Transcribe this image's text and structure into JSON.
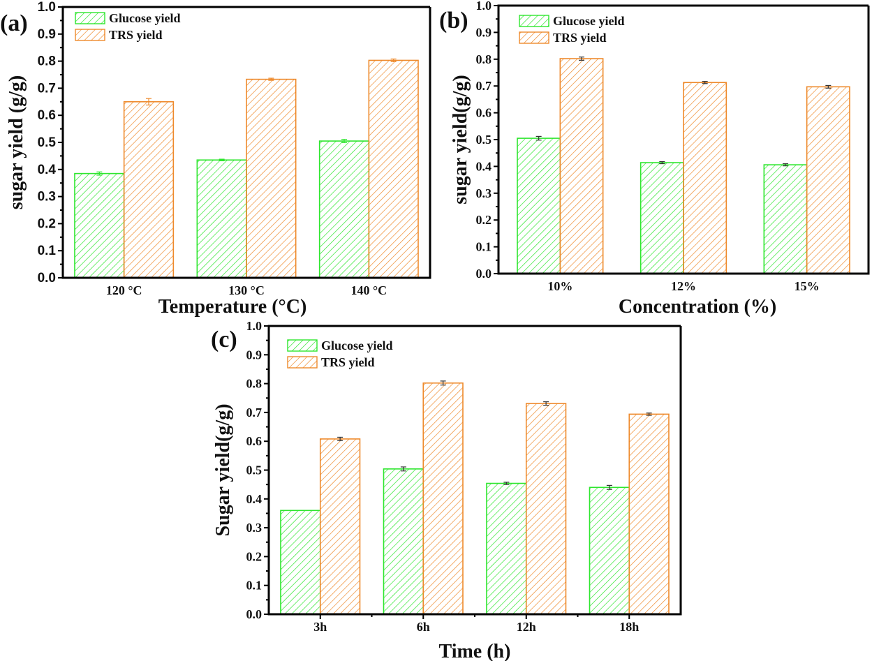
{
  "colors": {
    "glucose": "#2ee62e",
    "trs": "#ee8a2c",
    "axis": "#000000",
    "errorbar_glucose_a": "#2ee62e",
    "errorbar_default": "#333333"
  },
  "chart_data": [
    {
      "panel_label": "(a)",
      "type": "bar",
      "title": "",
      "xlabel": "Temperature (°C)",
      "ylabel": "sugar yield (g/g)",
      "categories": [
        "120 °C",
        "130 °C",
        "140 °C"
      ],
      "ylim": [
        0,
        1.0
      ],
      "yticks": [
        "0.0",
        "0.1",
        "0.2",
        "0.3",
        "0.4",
        "0.5",
        "0.6",
        "0.7",
        "0.8",
        "0.9",
        "1.0"
      ],
      "grid": false,
      "legend": "top-left",
      "series": [
        {
          "name": "Glucose yield",
          "values": [
            0.385,
            0.435,
            0.505
          ],
          "errors": [
            0.006,
            0.003,
            0.006
          ]
        },
        {
          "name": "TRS yield",
          "values": [
            0.65,
            0.733,
            0.803
          ],
          "errors": [
            0.012,
            0.004,
            0.005
          ]
        }
      ]
    },
    {
      "panel_label": "(b)",
      "type": "bar",
      "title": "",
      "xlabel": "Concentration (%)",
      "ylabel": "sugar yield(g/g)",
      "categories": [
        "10%",
        "12%",
        "15%"
      ],
      "ylim": [
        0,
        1.0
      ],
      "yticks": [
        "0.0",
        "0.1",
        "0.2",
        "0.3",
        "0.4",
        "0.5",
        "0.6",
        "0.7",
        "0.8",
        "0.9",
        "1.0"
      ],
      "grid": false,
      "legend": "top-left",
      "series": [
        {
          "name": "Glucose yield",
          "values": [
            0.505,
            0.414,
            0.406
          ],
          "errors": [
            0.007,
            0.004,
            0.004
          ]
        },
        {
          "name": "TRS yield",
          "values": [
            0.802,
            0.713,
            0.697
          ],
          "errors": [
            0.006,
            0.004,
            0.005
          ]
        }
      ]
    },
    {
      "panel_label": "(c)",
      "type": "bar",
      "title": "",
      "xlabel": "Time (h)",
      "ylabel": "Sugar yield(g/g)",
      "categories": [
        "3h",
        "6h",
        "12h",
        "18h"
      ],
      "ylim": [
        0,
        1.0
      ],
      "yticks": [
        "0.0",
        "0.1",
        "0.2",
        "0.3",
        "0.4",
        "0.5",
        "0.6",
        "0.7",
        "0.8",
        "0.9",
        "1.0"
      ],
      "grid": false,
      "legend": "top-left",
      "series": [
        {
          "name": "Glucose yield",
          "values": [
            0.36,
            0.504,
            0.454,
            0.44
          ],
          "errors": [
            0.0,
            0.007,
            0.004,
            0.007
          ]
        },
        {
          "name": "TRS yield",
          "values": [
            0.608,
            0.802,
            0.731,
            0.694
          ],
          "errors": [
            0.006,
            0.007,
            0.006,
            0.004
          ]
        }
      ]
    }
  ]
}
